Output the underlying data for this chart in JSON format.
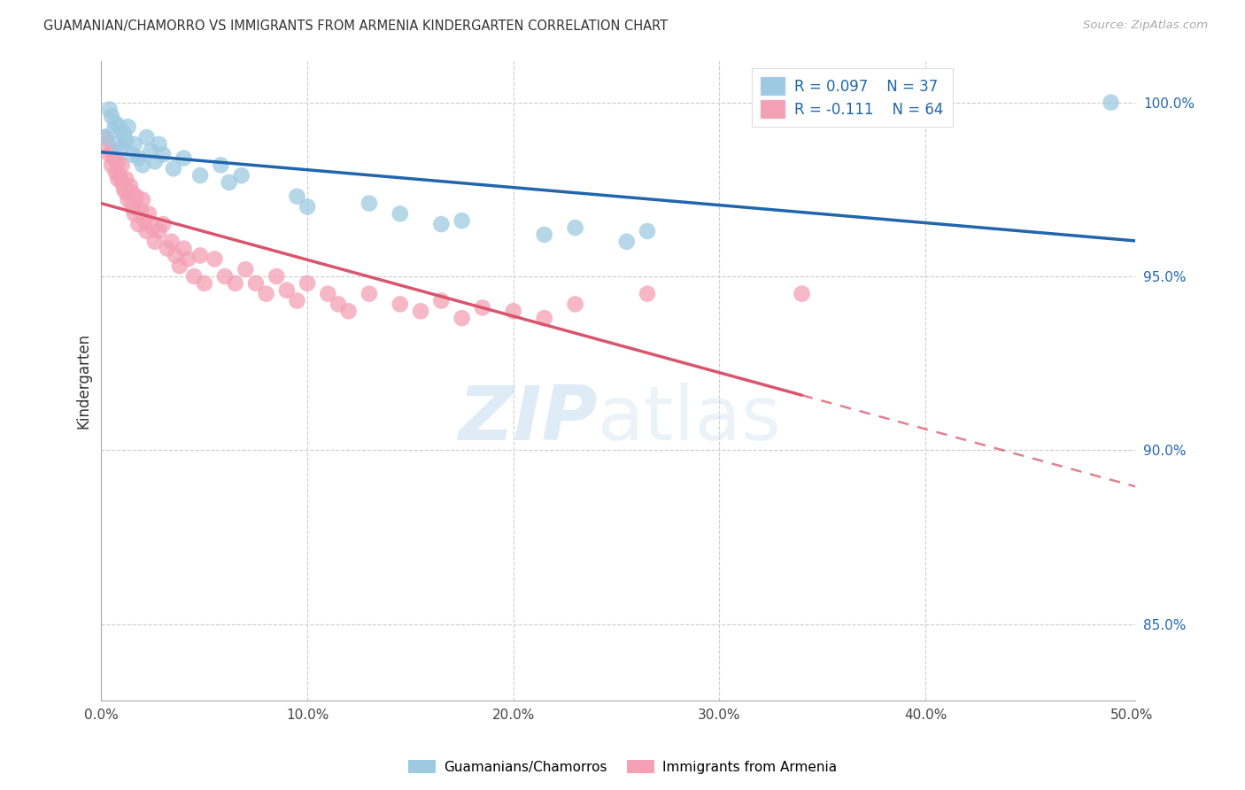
{
  "title": "GUAMANIAN/CHAMORRO VS IMMIGRANTS FROM ARMENIA KINDERGARTEN CORRELATION CHART",
  "source": "Source: ZipAtlas.com",
  "ylabel": "Kindergarten",
  "xlim": [
    0.0,
    0.502
  ],
  "ylim": [
    0.828,
    1.012
  ],
  "xticks": [
    0.0,
    0.1,
    0.2,
    0.3,
    0.4,
    0.5
  ],
  "xticklabels": [
    "0.0%",
    "10.0%",
    "20.0%",
    "30.0%",
    "40.0%",
    "50.0%"
  ],
  "yticks_right": [
    0.85,
    0.9,
    0.95,
    1.0
  ],
  "yticklabels_right": [
    "85.0%",
    "90.0%",
    "95.0%",
    "100.0%"
  ],
  "blue_scatter_color": "#9ecae1",
  "pink_scatter_color": "#f4a0b5",
  "blue_line_color": "#2166ac",
  "pink_line_color": "#d9556e",
  "R_blue": 0.097,
  "N_blue": 37,
  "R_pink": -0.111,
  "N_pink": 64,
  "legend_label_blue": "Guamanians/Chamorros",
  "legend_label_pink": "Immigrants from Armenia",
  "watermark_text": "ZIPatlas",
  "blue_x": [
    0.002,
    0.004,
    0.005,
    0.006,
    0.007,
    0.008,
    0.009,
    0.01,
    0.011,
    0.012,
    0.013,
    0.015,
    0.016,
    0.018,
    0.02,
    0.022,
    0.024,
    0.026,
    0.028,
    0.03,
    0.035,
    0.04,
    0.048,
    0.058,
    0.062,
    0.068,
    0.095,
    0.1,
    0.13,
    0.145,
    0.165,
    0.175,
    0.215,
    0.23,
    0.255,
    0.265,
    0.49
  ],
  "blue_y": [
    0.99,
    0.998,
    0.996,
    0.992,
    0.994,
    0.988,
    0.993,
    0.987,
    0.991,
    0.989,
    0.993,
    0.985,
    0.988,
    0.984,
    0.982,
    0.99,
    0.986,
    0.983,
    0.988,
    0.985,
    0.981,
    0.984,
    0.979,
    0.982,
    0.977,
    0.979,
    0.973,
    0.97,
    0.971,
    0.968,
    0.965,
    0.966,
    0.962,
    0.964,
    0.96,
    0.963,
    1.0
  ],
  "pink_x": [
    0.002,
    0.003,
    0.004,
    0.005,
    0.005,
    0.006,
    0.007,
    0.008,
    0.008,
    0.009,
    0.01,
    0.01,
    0.011,
    0.012,
    0.012,
    0.013,
    0.014,
    0.015,
    0.015,
    0.016,
    0.017,
    0.018,
    0.019,
    0.02,
    0.021,
    0.022,
    0.023,
    0.025,
    0.026,
    0.028,
    0.03,
    0.032,
    0.034,
    0.036,
    0.038,
    0.04,
    0.042,
    0.045,
    0.048,
    0.05,
    0.055,
    0.06,
    0.065,
    0.07,
    0.075,
    0.08,
    0.085,
    0.09,
    0.095,
    0.1,
    0.11,
    0.115,
    0.12,
    0.13,
    0.145,
    0.155,
    0.165,
    0.175,
    0.185,
    0.2,
    0.215,
    0.23,
    0.265,
    0.34
  ],
  "pink_y": [
    0.99,
    0.988,
    0.985,
    0.986,
    0.982,
    0.984,
    0.98,
    0.978,
    0.983,
    0.979,
    0.977,
    0.982,
    0.975,
    0.978,
    0.974,
    0.972,
    0.976,
    0.97,
    0.974,
    0.968,
    0.973,
    0.965,
    0.969,
    0.972,
    0.966,
    0.963,
    0.968,
    0.964,
    0.96,
    0.963,
    0.965,
    0.958,
    0.96,
    0.956,
    0.953,
    0.958,
    0.955,
    0.95,
    0.956,
    0.948,
    0.955,
    0.95,
    0.948,
    0.952,
    0.948,
    0.945,
    0.95,
    0.946,
    0.943,
    0.948,
    0.945,
    0.942,
    0.94,
    0.945,
    0.942,
    0.94,
    0.943,
    0.938,
    0.941,
    0.94,
    0.938,
    0.942,
    0.945,
    0.945
  ]
}
